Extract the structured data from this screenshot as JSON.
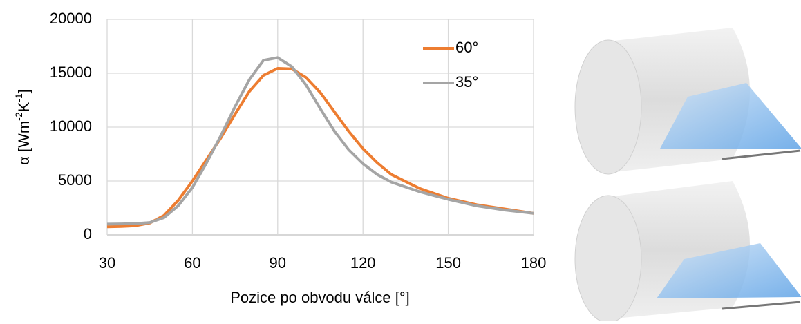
{
  "chart_data": {
    "type": "line",
    "xlabel": "Pozice po obvodu válce [°]",
    "ylabel": {
      "base": "α [Wm",
      "sup1": "-2",
      "mid": "K",
      "sup2": "-1",
      "end": "]"
    },
    "x": [
      30,
      35,
      40,
      45,
      50,
      55,
      60,
      65,
      70,
      75,
      80,
      85,
      90,
      95,
      100,
      105,
      110,
      115,
      120,
      125,
      130,
      140,
      150,
      160,
      170,
      180
    ],
    "series": [
      {
        "name": "60°",
        "color": "#ed7d31",
        "values": [
          750,
          780,
          850,
          1100,
          1800,
          3200,
          5000,
          7000,
          9000,
          11200,
          13300,
          14800,
          15450,
          15400,
          14600,
          13200,
          11400,
          9600,
          8000,
          6700,
          5600,
          4300,
          3400,
          2800,
          2400,
          2000
        ]
      },
      {
        "name": "35°",
        "color": "#a5a5a5",
        "values": [
          1000,
          1020,
          1050,
          1150,
          1600,
          2700,
          4400,
          6700,
          9200,
          11900,
          14400,
          16200,
          16450,
          15600,
          13900,
          11700,
          9600,
          7900,
          6600,
          5600,
          4900,
          4000,
          3300,
          2700,
          2300,
          2000
        ]
      }
    ],
    "xlim": [
      30,
      180
    ],
    "xticks": [
      30,
      60,
      90,
      120,
      150,
      180
    ],
    "ylim": [
      0,
      20000
    ],
    "yticks": [
      0,
      5000,
      10000,
      15000,
      20000
    ],
    "grid": true,
    "legend": "upper right"
  }
}
